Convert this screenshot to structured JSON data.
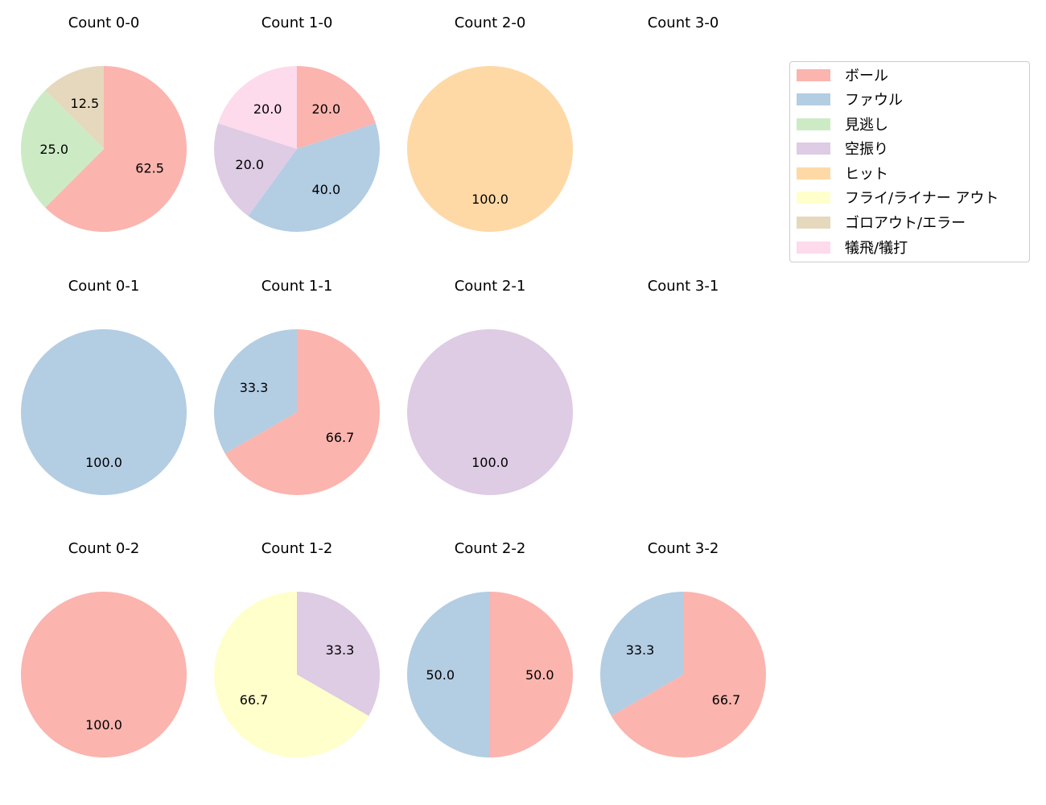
{
  "chart_data": {
    "type": "pie",
    "layout": {
      "rows": 3,
      "cols": 4,
      "legend_position": "upper right"
    },
    "categories": [
      "ボール",
      "ファウル",
      "見逃し",
      "空振り",
      "ヒット",
      "フライ/ライナー アウト",
      "ゴロアウト/エラー",
      "犠飛/犠打"
    ],
    "colors": [
      "#fbb4ae",
      "#b3cde3",
      "#ccebc5",
      "#decbe4",
      "#fed9a6",
      "#ffffcc",
      "#e5d8bd",
      "#fddaec"
    ],
    "charts": [
      {
        "title": "Count 0-0",
        "slices": [
          {
            "label": "ボール",
            "value": 62.5
          },
          {
            "label": "見逃し",
            "value": 25.0
          },
          {
            "label": "ゴロアウト/エラー",
            "value": 12.5
          }
        ]
      },
      {
        "title": "Count 1-0",
        "slices": [
          {
            "label": "ボール",
            "value": 20.0
          },
          {
            "label": "ファウル",
            "value": 40.0
          },
          {
            "label": "空振り",
            "value": 20.0
          },
          {
            "label": "犠飛/犠打",
            "value": 20.0
          }
        ]
      },
      {
        "title": "Count 2-0",
        "slices": [
          {
            "label": "ヒット",
            "value": 100.0
          }
        ]
      },
      {
        "title": "Count 3-0",
        "slices": []
      },
      {
        "title": "Count 0-1",
        "slices": [
          {
            "label": "ファウル",
            "value": 100.0
          }
        ]
      },
      {
        "title": "Count 1-1",
        "slices": [
          {
            "label": "ボール",
            "value": 66.7
          },
          {
            "label": "ファウル",
            "value": 33.3
          }
        ]
      },
      {
        "title": "Count 2-1",
        "slices": [
          {
            "label": "空振り",
            "value": 100.0
          }
        ]
      },
      {
        "title": "Count 3-1",
        "slices": []
      },
      {
        "title": "Count 0-2",
        "slices": [
          {
            "label": "ボール",
            "value": 100.0
          }
        ]
      },
      {
        "title": "Count 1-2",
        "slices": [
          {
            "label": "空振り",
            "value": 33.3
          },
          {
            "label": "フライ/ライナー アウト",
            "value": 66.7
          }
        ]
      },
      {
        "title": "Count 2-2",
        "slices": [
          {
            "label": "ボール",
            "value": 50.0
          },
          {
            "label": "ファウル",
            "value": 50.0
          }
        ]
      },
      {
        "title": "Count 3-2",
        "slices": [
          {
            "label": "ボール",
            "value": 66.7
          },
          {
            "label": "ファウル",
            "value": 33.3
          }
        ]
      }
    ]
  },
  "legend": {
    "items": [
      {
        "label": "ボール",
        "color": "#fbb4ae"
      },
      {
        "label": "ファウル",
        "color": "#b3cde3"
      },
      {
        "label": "見逃し",
        "color": "#ccebc5"
      },
      {
        "label": "空振り",
        "color": "#decbe4"
      },
      {
        "label": "ヒット",
        "color": "#fed9a6"
      },
      {
        "label": "フライ/ライナー アウト",
        "color": "#ffffcc"
      },
      {
        "label": "ゴロアウト/エラー",
        "color": "#e5d8bd"
      },
      {
        "label": "犠飛/犠打",
        "color": "#fddaec"
      }
    ]
  }
}
